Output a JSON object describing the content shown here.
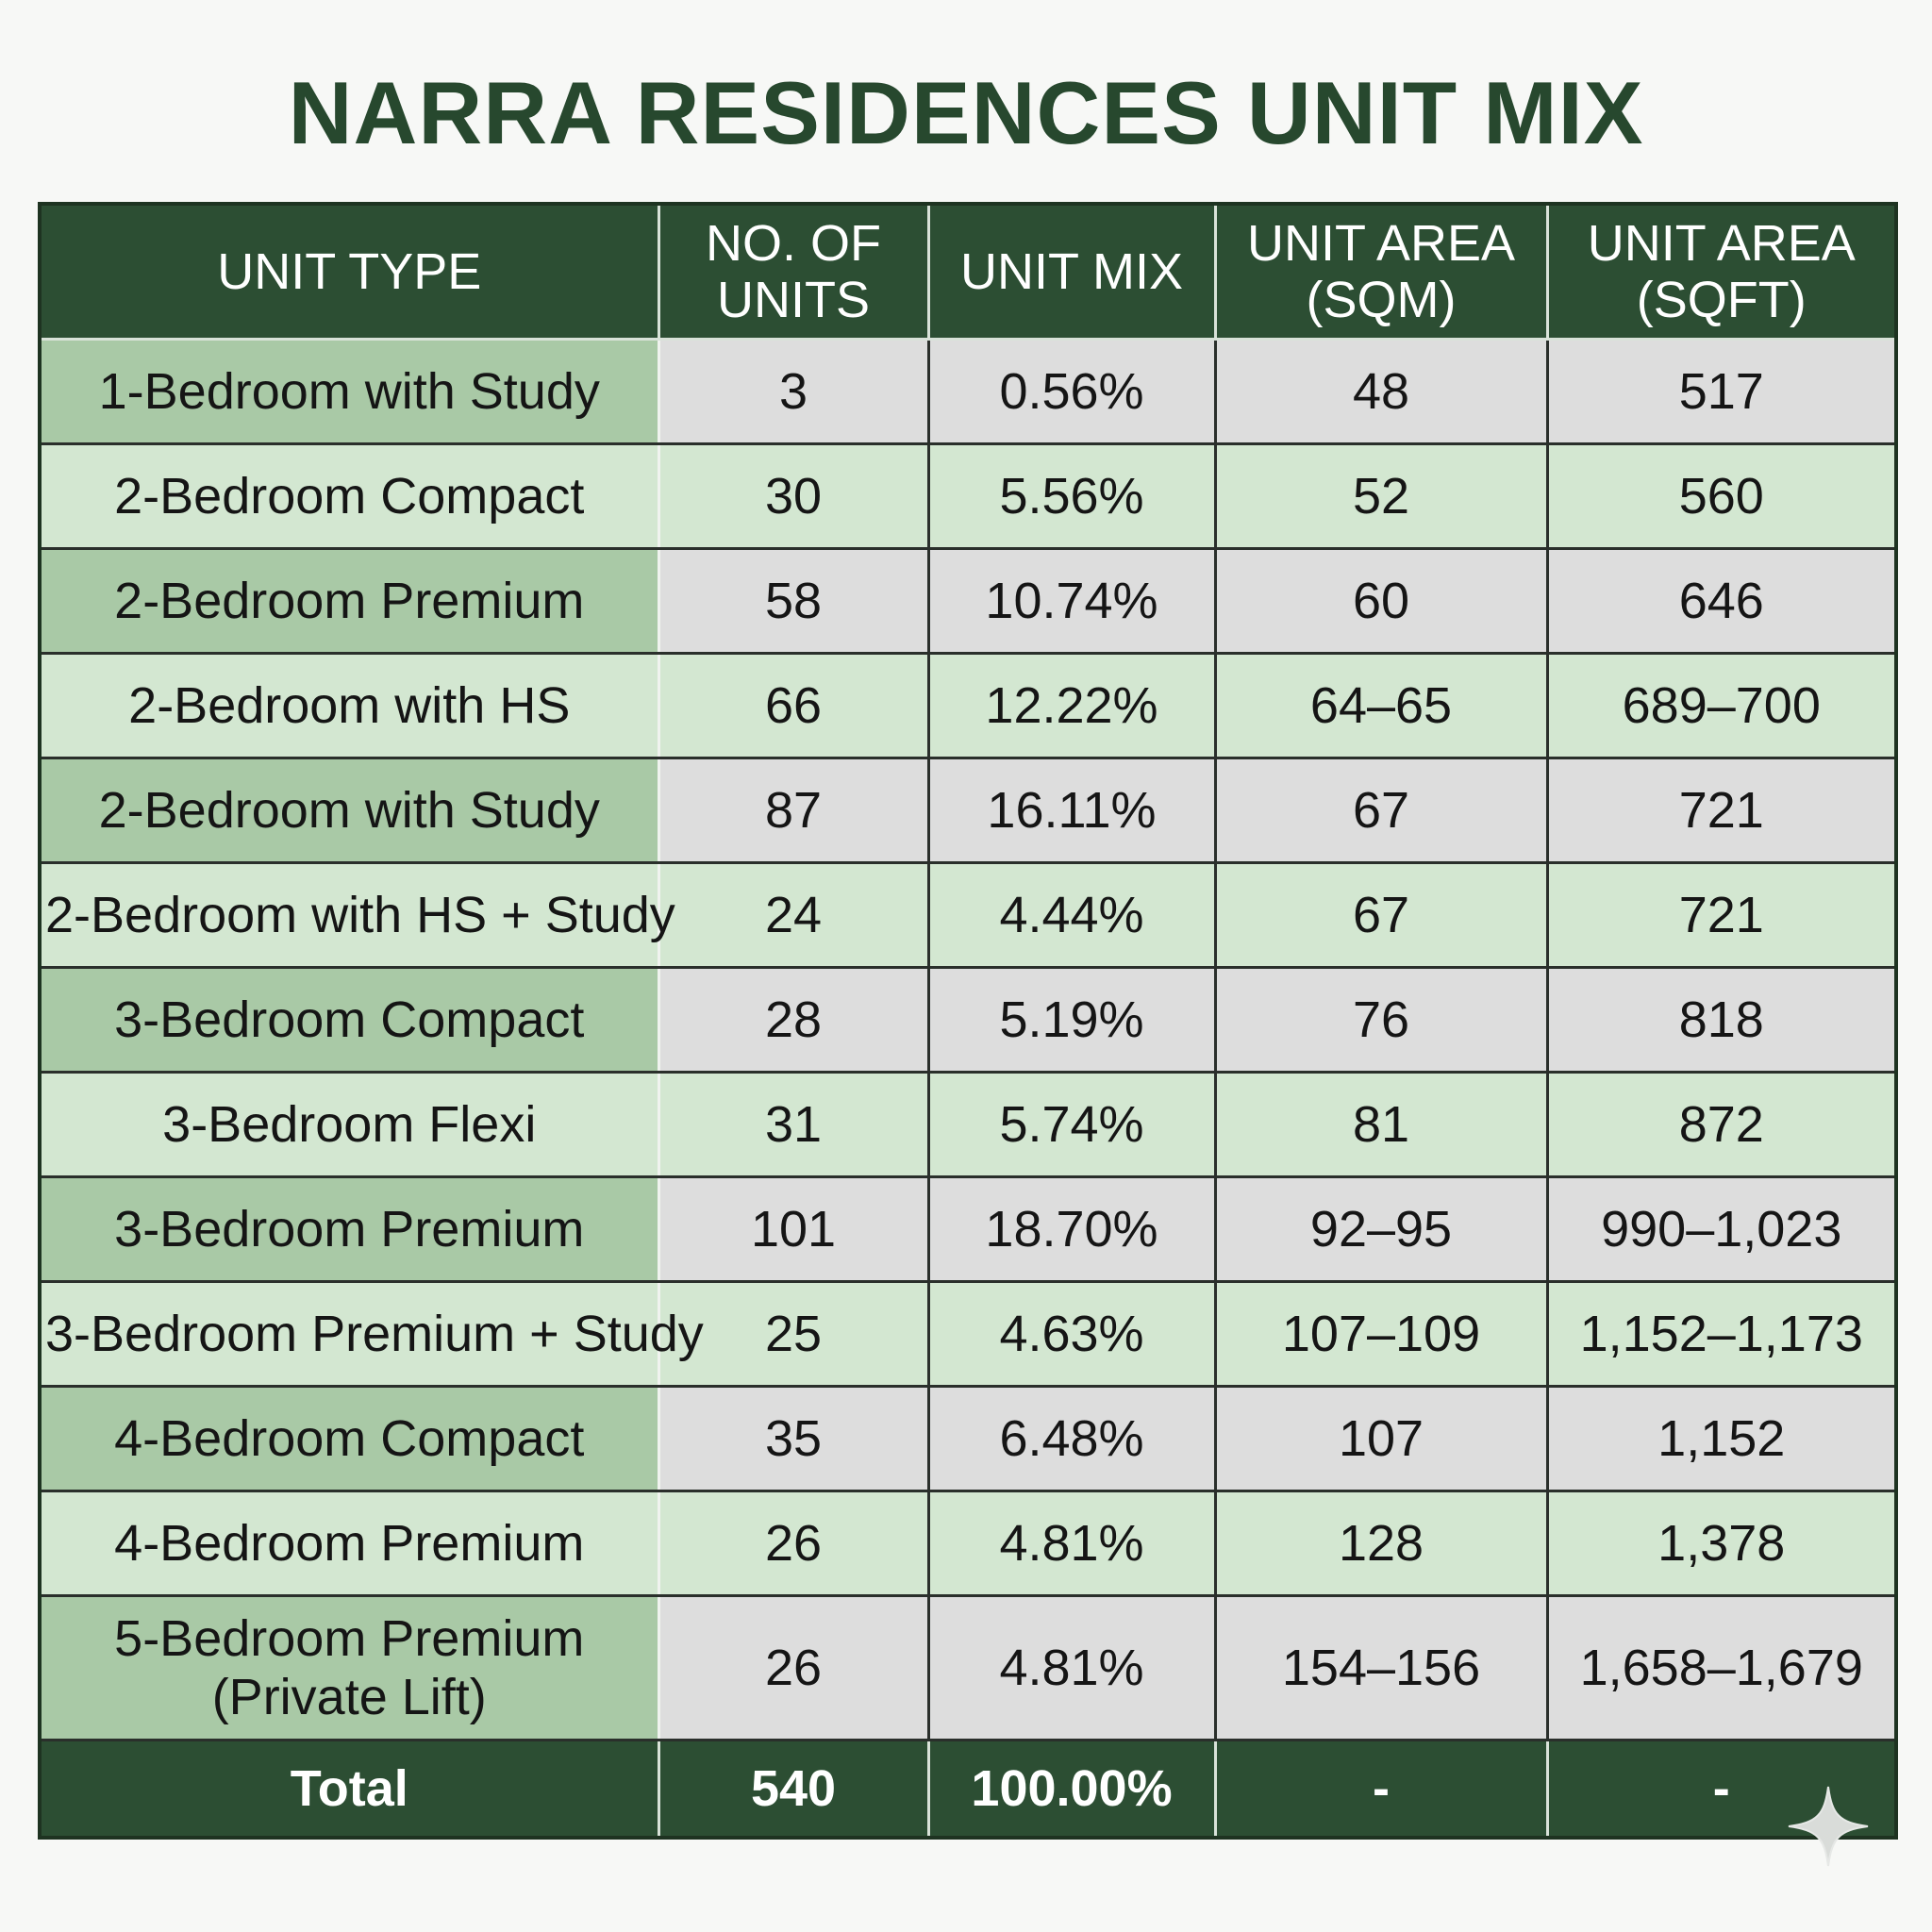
{
  "title": "NARRA RESIDENCES UNIT MIX",
  "table": {
    "headers": [
      [
        "UNIT TYPE"
      ],
      [
        "NO. OF",
        "UNITS"
      ],
      [
        "UNIT MIX"
      ],
      [
        "UNIT AREA",
        "(SQM)"
      ],
      [
        "UNIT AREA",
        "(SQFT)"
      ]
    ],
    "rows": [
      {
        "type": [
          "1-Bedroom with Study"
        ],
        "units": "3",
        "mix": "0.56%",
        "sqm": "48",
        "sqft": "517"
      },
      {
        "type": [
          "2-Bedroom Compact"
        ],
        "units": "30",
        "mix": "5.56%",
        "sqm": "52",
        "sqft": "560"
      },
      {
        "type": [
          "2-Bedroom Premium"
        ],
        "units": "58",
        "mix": "10.74%",
        "sqm": "60",
        "sqft": "646"
      },
      {
        "type": [
          "2-Bedroom with HS"
        ],
        "units": "66",
        "mix": "12.22%",
        "sqm": "64–65",
        "sqft": "689–700"
      },
      {
        "type": [
          "2-Bedroom with Study"
        ],
        "units": "87",
        "mix": "16.11%",
        "sqm": "67",
        "sqft": "721"
      },
      {
        "type": [
          "2-Bedroom with HS + Study"
        ],
        "units": "24",
        "mix": "4.44%",
        "sqm": "67",
        "sqft": "721"
      },
      {
        "type": [
          "3-Bedroom Compact"
        ],
        "units": "28",
        "mix": "5.19%",
        "sqm": "76",
        "sqft": "818"
      },
      {
        "type": [
          "3-Bedroom Flexi"
        ],
        "units": "31",
        "mix": "5.74%",
        "sqm": "81",
        "sqft": "872"
      },
      {
        "type": [
          "3-Bedroom Premium"
        ],
        "units": "101",
        "mix": "18.70%",
        "sqm": "92–95",
        "sqft": "990–1,023"
      },
      {
        "type": [
          "3-Bedroom Premium + Study"
        ],
        "units": "25",
        "mix": "4.63%",
        "sqm": "107–109",
        "sqft": "1,152–1,173"
      },
      {
        "type": [
          "4-Bedroom Compact"
        ],
        "units": "35",
        "mix": "6.48%",
        "sqm": "107",
        "sqft": "1,152"
      },
      {
        "type": [
          "4-Bedroom Premium"
        ],
        "units": "26",
        "mix": "4.81%",
        "sqm": "128",
        "sqft": "1,378"
      },
      {
        "type": [
          "5-Bedroom Premium",
          "(Private Lift)"
        ],
        "units": "26",
        "mix": "4.81%",
        "sqm": "154–156",
        "sqft": "1,658–1,679"
      }
    ],
    "total": {
      "label": "Total",
      "units": "540",
      "mix": "100.00%",
      "sqm": "-",
      "sqft": "-"
    }
  },
  "colors": {
    "header_green": "#2c4e33",
    "title_green": "#27482e",
    "type_dark": "#a9c9a6",
    "row_light": "#d3e7d1",
    "value_grey": "#dddddd"
  },
  "icons": {
    "corner": "sparkle-icon"
  }
}
